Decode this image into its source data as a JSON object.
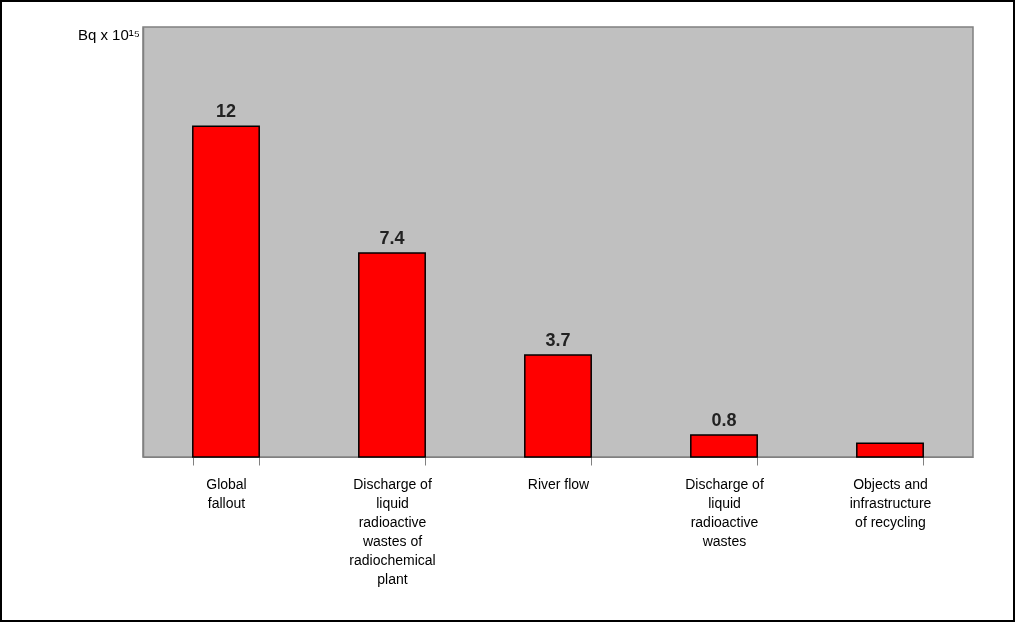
{
  "chart_data": {
    "type": "bar",
    "annotations": [
      "Bq x 10¹⁵"
    ],
    "categories": [
      "Global fallout",
      "Discharge of liquid radioactive wastes of radiochemical plant",
      "River flow",
      "Discharge of liquid radioactive wastes",
      "Objects and infrastructure of recycling"
    ],
    "values": [
      12,
      7.4,
      3.7,
      0.8,
      0.5
    ],
    "value_labels": [
      "12",
      "7.4",
      "3.7",
      "0.8",
      null
    ],
    "color": "#ff0000",
    "tick_labels": "x"
  }
}
